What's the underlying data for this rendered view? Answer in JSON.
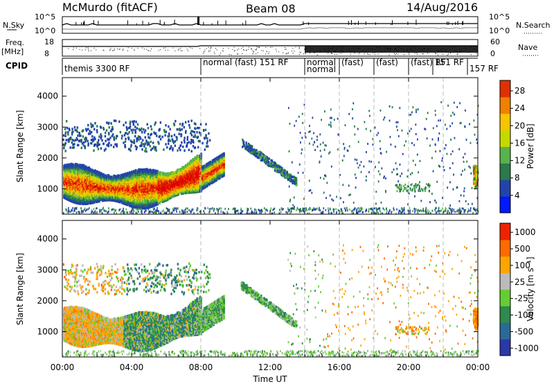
{
  "header": {
    "radar": "McMurdo (fitACF)",
    "beam": "Beam 08",
    "date": "14/Aug/2016"
  },
  "strips": {
    "nsky": {
      "label": "N.Sky",
      "top_tick": "10^5",
      "bottom_tick": "10^0"
    },
    "nsearch": {
      "label": "N.Search",
      "top_tick": "10^5",
      "bottom_tick": "10^0"
    },
    "freq": {
      "label_line1": "Freq.",
      "label_line2": "[MHz]",
      "top_tick": "18",
      "bottom_tick": "8"
    },
    "nave": {
      "label": "Nave",
      "top_tick": "60",
      "bottom_tick": "0"
    },
    "cpid": {
      "label": "CPID"
    }
  },
  "cpid_segments": [
    {
      "text": "themis 3300 RF",
      "start_hour": 0.0
    },
    {
      "text": "normal (fast) 151 RF",
      "start_hour": 8.0
    },
    {
      "text": "normal",
      "start_hour": 14.0
    },
    {
      "text": "normal",
      "start_hour": 14.0
    },
    {
      "text": "(fast)",
      "start_hour": 16.0
    },
    {
      "text": "(fast)",
      "start_hour": 18.0
    },
    {
      "text": "(fast) RF",
      "start_hour": 20.0
    },
    {
      "text": "151 RF",
      "start_hour": 21.4
    },
    {
      "text": "157 RF",
      "start_hour": 23.4
    }
  ],
  "chart_data": [
    {
      "type": "heatmap",
      "name": "power-panel",
      "ylabel": "Slant Range [km]",
      "xlabel": "Time UT",
      "xlim": [
        0,
        24
      ],
      "ylim": [
        180,
        4600
      ],
      "x_ticks": [
        "00:00",
        "04:00",
        "08:00",
        "12:00",
        "16:00",
        "20:00",
        "00:00"
      ],
      "y_ticks": [
        1000,
        2000,
        3000,
        4000
      ],
      "colorbar": {
        "label": "Power [dB]",
        "ticks": [
          "4",
          "8",
          "12",
          "16",
          "20",
          "24",
          "28"
        ],
        "range": [
          0,
          30
        ]
      }
    },
    {
      "type": "heatmap",
      "name": "velocity-panel",
      "ylabel": "Slant Range [km]",
      "xlabel": "Time UT",
      "xlim": [
        0,
        24
      ],
      "ylim": [
        180,
        4600
      ],
      "x_ticks": [
        "00:00",
        "04:00",
        "08:00",
        "12:00",
        "16:00",
        "20:00",
        "00:00"
      ],
      "y_ticks": [
        1000,
        2000,
        3000,
        4000
      ],
      "colorbar": {
        "label": "Velocity [m s⁻¹]",
        "ticks": [
          "1000",
          "500",
          "100",
          "25",
          "-25",
          "-100",
          "-500",
          "-1000"
        ]
      }
    }
  ],
  "colors": {
    "power_scale": [
      "#0019ff",
      "#2244aa",
      "#2a7a4a",
      "#57b34d",
      "#c6d800",
      "#f6c400",
      "#f08000",
      "#e03000",
      "#e00000"
    ],
    "velocity_scale": [
      "#2a38a8",
      "#2a6a98",
      "#2e8a4e",
      "#66cc33",
      "#bbbbbb",
      "#ffa500",
      "#ff6a00",
      "#ee2200"
    ]
  }
}
